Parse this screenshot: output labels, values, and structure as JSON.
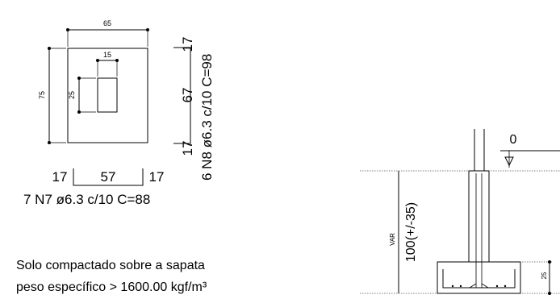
{
  "plan": {
    "width_dim": "65",
    "height_dim": "75",
    "pillar_width_dim": "15",
    "pillar_height_dim": "25"
  },
  "bars_x": {
    "left_hook": "17",
    "span": "57",
    "right_hook": "17",
    "spec": "7 N7 ø6.3 c/10  C=88"
  },
  "bars_y": {
    "top_hook": "17",
    "span": "67",
    "bottom_hook": "17",
    "spec": "6 N8 ø6.3 c/10  C=98"
  },
  "note": {
    "line1": "Solo compactado sobre a sapata",
    "line2": "peso específico > 1600.00 kgf/m³"
  },
  "section": {
    "level_label": "0",
    "var_label": "VAR",
    "depth_dim": "100(+/-35)",
    "footing_height_dim": "25"
  }
}
